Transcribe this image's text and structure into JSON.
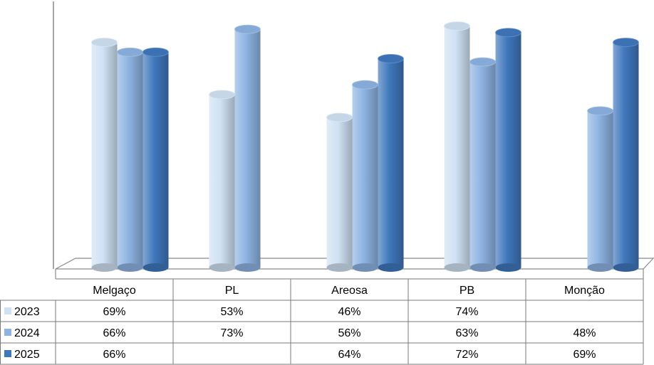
{
  "chart_data": {
    "type": "bar",
    "title": "",
    "xlabel": "",
    "ylabel": "",
    "ylim": [
      0,
      75
    ],
    "grid": false,
    "legend_placement": "left of data table",
    "categories": [
      "Melgaço",
      "PL",
      "Areosa",
      "PB",
      "Monção"
    ],
    "series": [
      {
        "name": "2023",
        "color": "#cfe1f3",
        "values": [
          69,
          53,
          46,
          74,
          null
        ]
      },
      {
        "name": "2024",
        "color": "#8db3e2",
        "values": [
          66,
          73,
          56,
          63,
          48
        ]
      },
      {
        "name": "2025",
        "color": "#3f77bc",
        "values": [
          66,
          null,
          64,
          72,
          69
        ]
      }
    ],
    "table": {
      "header": [
        "Melgaço",
        "PL",
        "Areosa",
        "PB",
        "Monção"
      ],
      "rows": [
        {
          "label": "2023",
          "cells": [
            "69%",
            "53%",
            "46%",
            "74%",
            ""
          ]
        },
        {
          "label": "2024",
          "cells": [
            "66%",
            "73%",
            "56%",
            "63%",
            "48%"
          ]
        },
        {
          "label": "2025",
          "cells": [
            "66%",
            "",
            "64%",
            "72%",
            "69%"
          ]
        }
      ]
    }
  }
}
